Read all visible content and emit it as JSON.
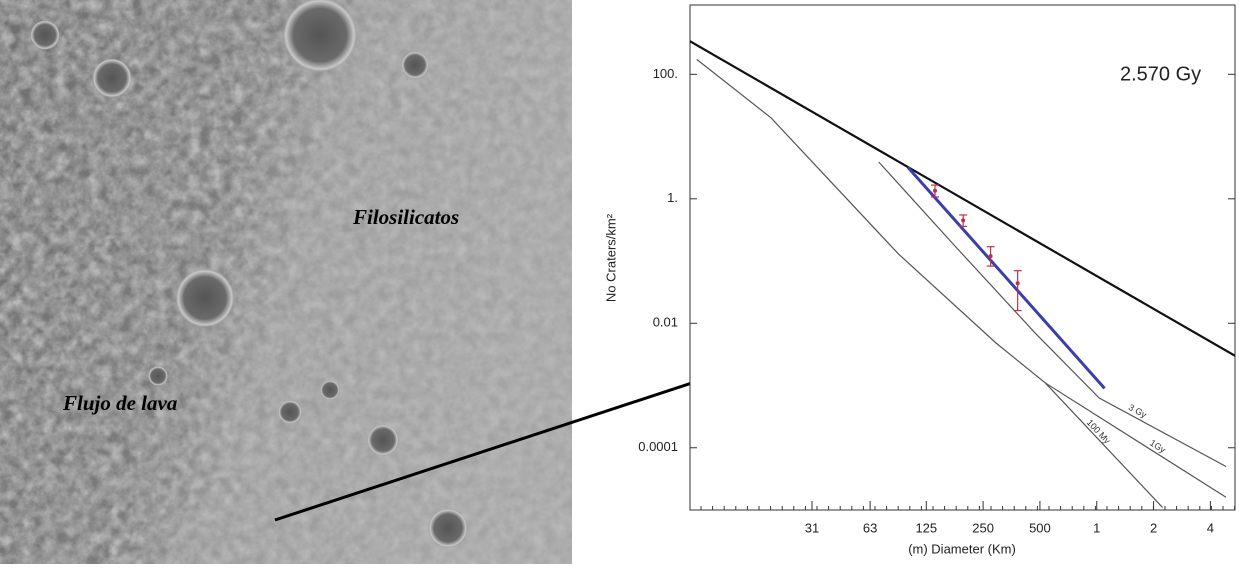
{
  "image_labels": {
    "top_right": "Filosilicatos",
    "bottom_left": "Flujo de lava"
  },
  "chart_data": {
    "type": "line",
    "annotation": "2.570 Gy",
    "xlabel": "(m) Diameter (Km)",
    "ylabel": "No Craters/km²",
    "xscale": "log",
    "yscale": "log",
    "xlim": [
      7,
      5400
    ],
    "ylim": [
      1e-05,
      1300
    ],
    "xticks": [
      31,
      63,
      125,
      250,
      500,
      {
        "value": 1000,
        "label": "1"
      },
      {
        "value": 2000,
        "label": "2"
      },
      {
        "value": 4000,
        "label": "4"
      }
    ],
    "yticks": [
      {
        "value": 100,
        "label": "100."
      },
      {
        "value": 1,
        "label": "1."
      },
      0.01,
      0.0001
    ],
    "isochron": {
      "color": "#111111",
      "x": [
        7,
        5400
      ],
      "values": [
        340,
        0.003
      ]
    },
    "series": [
      {
        "name": "3 Gy",
        "color": "#555555",
        "x": [
          70,
          182,
          473,
          1030,
          4840
        ],
        "values": [
          3.9,
          0.16,
          0.0069,
          0.00063,
          5e-05
        ]
      },
      {
        "name": "1Gy",
        "color": "#555555",
        "x": [
          7.6,
          18.8,
          89,
          293,
          534,
          4840
        ],
        "values": [
          174,
          20,
          0.13,
          0.0048,
          0.0011,
          1.6e-05
        ]
      },
      {
        "name": "100 My",
        "color": "#555555",
        "x": [
          534,
          2230
        ],
        "values": [
          0.0011,
          1.1e-05
        ]
      }
    ],
    "fit": {
      "color": "#3b3fa8",
      "x": [
        100,
        1100
      ],
      "values": [
        3.2,
        0.0009
      ]
    },
    "points": {
      "color": "#c0304a",
      "x": [
        139,
        196,
        274,
        381
      ],
      "values": [
        1.35,
        0.45,
        0.12,
        0.044
      ],
      "lower": [
        1.07,
        0.36,
        0.083,
        0.016
      ],
      "upper": [
        1.66,
        0.55,
        0.17,
        0.07
      ]
    }
  }
}
